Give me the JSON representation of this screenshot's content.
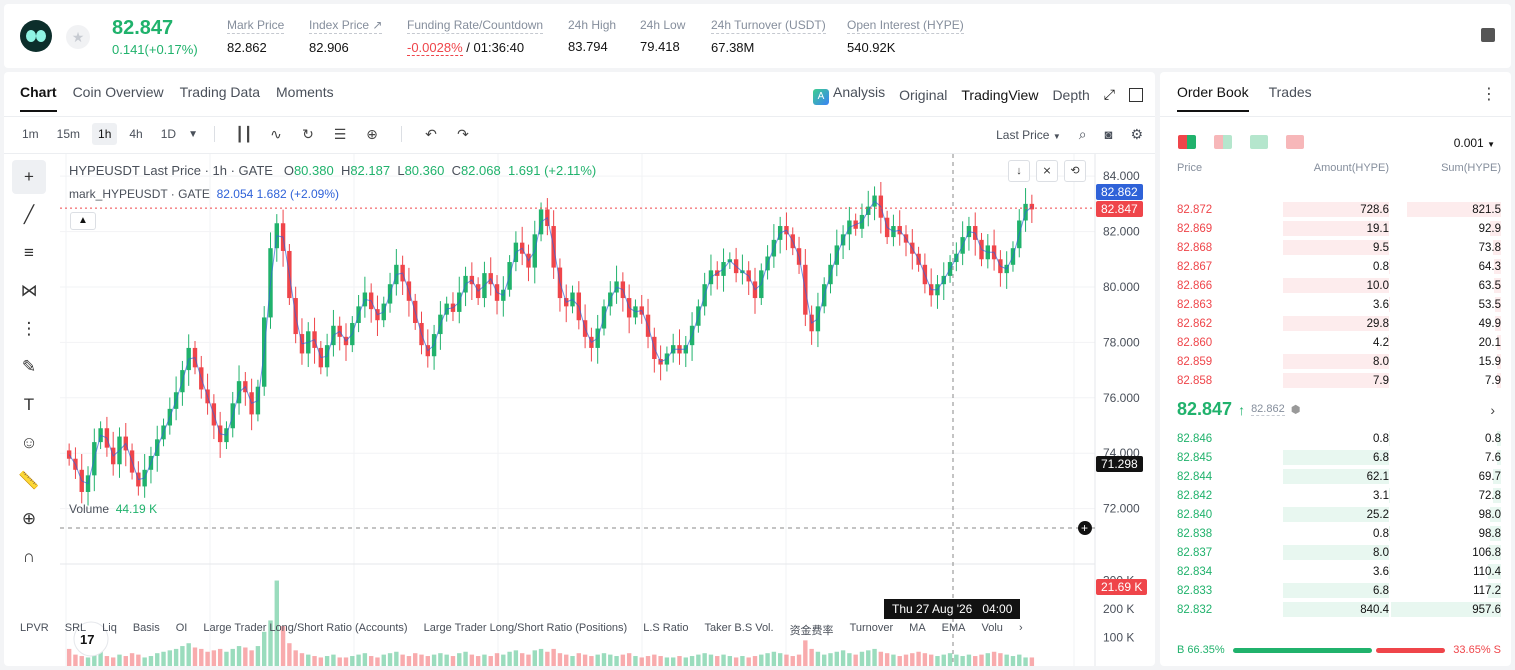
{
  "header": {
    "last_price": "82.847",
    "change": "0.141(+0.17%)",
    "stats": [
      {
        "label": "Mark Price",
        "value": "82.862"
      },
      {
        "label": "Index Price ↗",
        "value": "82.906"
      },
      {
        "label": "Funding Rate/Countdown",
        "value_rate": "-0.0028%",
        "value_countdown": " / 01:36:40"
      },
      {
        "label": "24h High",
        "value": "83.794"
      },
      {
        "label": "24h Low",
        "value": "79.418"
      },
      {
        "label": "24h Turnover (USDT)",
        "value": "67.38M"
      },
      {
        "label": "Open Interest (HYPE)",
        "value": "540.92K"
      }
    ]
  },
  "chart_tabs": [
    "Chart",
    "Coin Overview",
    "Trading Data",
    "Moments"
  ],
  "view_tabs": {
    "analysis": "Analysis",
    "original": "Original",
    "tradingview": "TradingView",
    "depth": "Depth"
  },
  "intervals": [
    "1m",
    "15m",
    "1h",
    "4h",
    "1D"
  ],
  "active_interval": "1h",
  "price_type": "Last Price",
  "legend": {
    "symbol": "HYPEUSDT Last Price · 1h · GATE",
    "o_label": "O",
    "o": "80.380",
    "h_label": "H",
    "h": "82.187",
    "l_label": "L",
    "l": "80.360",
    "c_label": "C",
    "c": "82.068",
    "chg": "1.691 (+2.11%)",
    "mark_label": "mark_HYPEUSDT · GATE",
    "mark_values": "82.054  1.682 (+2.09%)"
  },
  "volume_legend": {
    "label": "Volume",
    "value": "44.19 K"
  },
  "price_tags": {
    "mark": "82.862",
    "last": "82.847",
    "cursor": "71.298",
    "volume": "21.69 K"
  },
  "crosshair": {
    "date": "Thu 27 Aug '26",
    "time": "04:00"
  },
  "indicators": [
    "LPVR",
    "SRL",
    "Liq",
    "Basis",
    "OI",
    "Large Trader Long/Short Ratio (Accounts)",
    "Large Trader Long/Short Ratio (Positions)",
    "L.S Ratio",
    "Taker B.S Vol.",
    "资金费率",
    "Turnover",
    "MA",
    "EMA",
    "Volu"
  ],
  "colors": {
    "up": "#20b26c",
    "down": "#ef454a",
    "mark_line": "#2f62d8"
  },
  "chart_data": {
    "type": "candlestick",
    "symbol": "HYPEUSDT",
    "interval": "1h",
    "x_ticks": [
      "21",
      "22",
      "23",
      "24",
      "25",
      "26",
      "28"
    ],
    "y_ticks": [
      72.0,
      74.0,
      76.0,
      78.0,
      80.0,
      82.0,
      84.0
    ],
    "ylim": [
      70.0,
      84.8
    ],
    "volume_ticks": [
      "100 K",
      "200 K",
      "300 K"
    ],
    "volume_max": 330,
    "closes": [
      73.8,
      73.4,
      72.6,
      73.2,
      74.4,
      74.9,
      74.2,
      73.6,
      74.6,
      74.1,
      73.3,
      72.8,
      73.4,
      73.9,
      74.5,
      75.0,
      75.6,
      76.2,
      77.0,
      77.8,
      77.1,
      76.3,
      75.8,
      75.0,
      74.4,
      74.9,
      75.8,
      76.6,
      76.2,
      75.4,
      76.4,
      78.9,
      81.4,
      82.3,
      81.3,
      79.6,
      78.3,
      77.6,
      78.4,
      77.8,
      77.1,
      77.9,
      78.6,
      78.2,
      77.9,
      78.7,
      79.3,
      79.8,
      79.2,
      78.8,
      79.4,
      80.1,
      80.8,
      80.2,
      79.5,
      78.7,
      77.9,
      77.5,
      78.3,
      79.0,
      79.4,
      79.1,
      79.8,
      80.4,
      80.1,
      79.6,
      80.5,
      80.1,
      79.5,
      79.9,
      80.9,
      81.6,
      81.2,
      80.7,
      81.9,
      82.8,
      82.2,
      80.7,
      79.6,
      79.3,
      79.8,
      78.8,
      78.2,
      77.8,
      78.5,
      79.3,
      79.8,
      80.2,
      79.6,
      78.9,
      79.3,
      79.0,
      78.2,
      77.4,
      77.2,
      77.6,
      77.9,
      77.6,
      77.9,
      78.6,
      79.3,
      80.1,
      80.6,
      80.4,
      80.9,
      81.0,
      80.5,
      80.6,
      80.2,
      79.6,
      80.6,
      81.1,
      81.7,
      82.2,
      81.9,
      81.4,
      80.8,
      79.0,
      78.4,
      79.3,
      80.1,
      80.8,
      81.5,
      81.9,
      82.4,
      82.1,
      82.6,
      82.9,
      83.3,
      82.5,
      81.8,
      82.2,
      81.9,
      81.6,
      81.2,
      80.8,
      80.1,
      79.7,
      80.1,
      80.4,
      80.9,
      81.2,
      81.8,
      82.2,
      81.7,
      81.0,
      81.5,
      81.0,
      80.5,
      80.8,
      81.4,
      82.4,
      83.0,
      82.8
    ],
    "volumes": [
      60,
      40,
      35,
      30,
      45,
      50,
      35,
      30,
      40,
      35,
      45,
      40,
      30,
      35,
      45,
      50,
      55,
      60,
      70,
      80,
      65,
      60,
      50,
      55,
      60,
      50,
      60,
      70,
      65,
      55,
      70,
      120,
      160,
      300,
      140,
      80,
      55,
      45,
      40,
      35,
      30,
      35,
      40,
      30,
      30,
      35,
      40,
      45,
      35,
      30,
      40,
      45,
      50,
      40,
      35,
      45,
      40,
      35,
      40,
      45,
      40,
      35,
      45,
      50,
      40,
      35,
      40,
      35,
      45,
      40,
      50,
      55,
      45,
      40,
      55,
      60,
      50,
      60,
      45,
      40,
      35,
      45,
      40,
      35,
      40,
      45,
      40,
      35,
      40,
      45,
      35,
      30,
      35,
      40,
      35,
      30,
      30,
      35,
      30,
      35,
      40,
      45,
      40,
      35,
      40,
      35,
      30,
      35,
      30,
      35,
      40,
      45,
      50,
      45,
      40,
      35,
      40,
      90,
      60,
      50,
      40,
      45,
      50,
      55,
      45,
      40,
      50,
      55,
      60,
      50,
      45,
      40,
      35,
      40,
      45,
      50,
      45,
      40,
      35,
      40,
      45,
      40,
      35,
      40,
      35,
      40,
      45,
      50,
      45,
      40,
      35,
      40
    ]
  },
  "order_book": {
    "tabs": [
      "Order Book",
      "Trades"
    ],
    "precision": "0.001",
    "headers": {
      "price": "Price",
      "amount": "Amount(HYPE)",
      "sum": "Sum(HYPE)"
    },
    "asks": [
      {
        "price": "82.872",
        "amount": "728.6",
        "sum": "821.5"
      },
      {
        "price": "82.869",
        "amount": "19.1",
        "sum": "92.9"
      },
      {
        "price": "82.868",
        "amount": "9.5",
        "sum": "73.8"
      },
      {
        "price": "82.867",
        "amount": "0.8",
        "sum": "64.3"
      },
      {
        "price": "82.866",
        "amount": "10.0",
        "sum": "63.5"
      },
      {
        "price": "82.863",
        "amount": "3.6",
        "sum": "53.5"
      },
      {
        "price": "82.862",
        "amount": "29.8",
        "sum": "49.9"
      },
      {
        "price": "82.860",
        "amount": "4.2",
        "sum": "20.1"
      },
      {
        "price": "82.859",
        "amount": "8.0",
        "sum": "15.9"
      },
      {
        "price": "82.858",
        "amount": "7.9",
        "sum": "7.9"
      }
    ],
    "mid": {
      "price": "82.847",
      "arrow": "↑",
      "mark": "82.862"
    },
    "bids": [
      {
        "price": "82.846",
        "amount": "0.8",
        "sum": "0.8"
      },
      {
        "price": "82.845",
        "amount": "6.8",
        "sum": "7.6"
      },
      {
        "price": "82.844",
        "amount": "62.1",
        "sum": "69.7"
      },
      {
        "price": "82.842",
        "amount": "3.1",
        "sum": "72.8"
      },
      {
        "price": "82.840",
        "amount": "25.2",
        "sum": "98.0"
      },
      {
        "price": "82.838",
        "amount": "0.8",
        "sum": "98.8"
      },
      {
        "price": "82.837",
        "amount": "8.0",
        "sum": "106.8"
      },
      {
        "price": "82.834",
        "amount": "3.6",
        "sum": "110.4"
      },
      {
        "price": "82.833",
        "amount": "6.8",
        "sum": "117.2"
      },
      {
        "price": "82.832",
        "amount": "840.4",
        "sum": "957.6"
      }
    ],
    "ratio": {
      "buy_label": "B 66.35%",
      "sell_label": "33.65% S",
      "buy": 66.35,
      "sell": 33.65
    }
  }
}
